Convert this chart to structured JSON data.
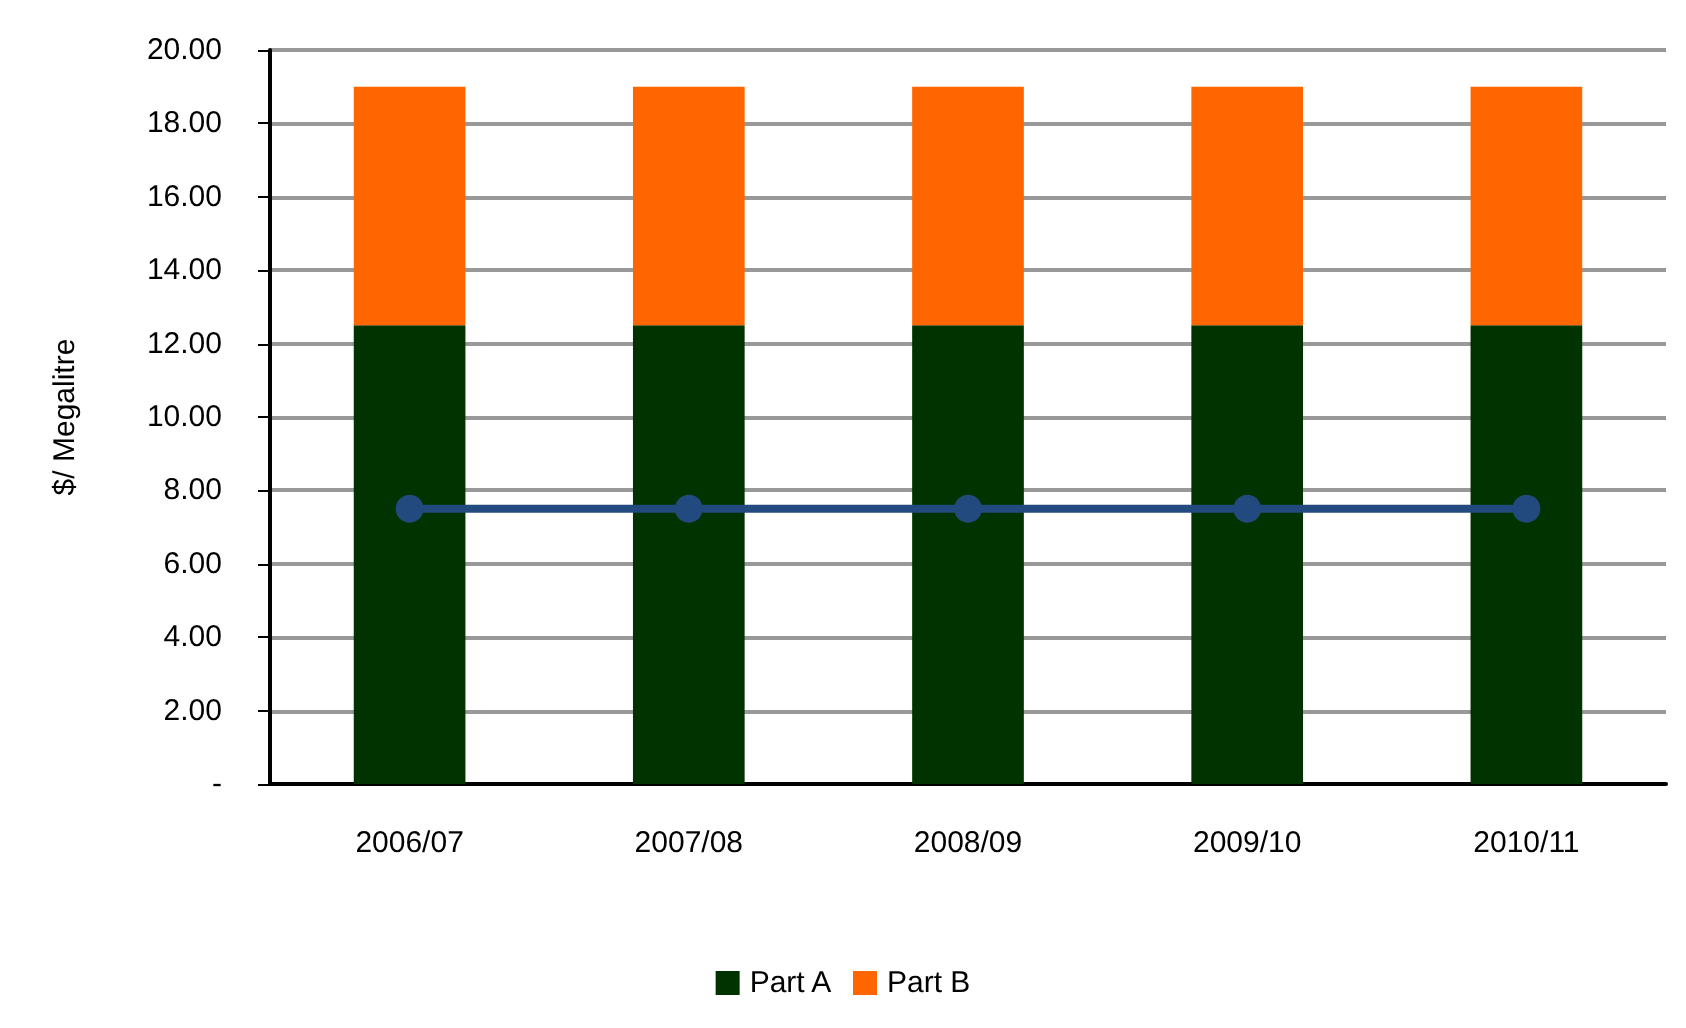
{
  "chart_data": {
    "type": "bar",
    "ylabel": "$/ Megalitre",
    "categories": [
      "2006/07",
      "2007/08",
      "2008/09",
      "2009/10",
      "2010/11"
    ],
    "stacked": true,
    "grid": "y",
    "legend": "bottom",
    "ylim": [
      0,
      20
    ],
    "yticks": [
      {
        "value": 0,
        "label": "-"
      },
      {
        "value": 2,
        "label": "2.00"
      },
      {
        "value": 4,
        "label": "4.00"
      },
      {
        "value": 6,
        "label": "6.00"
      },
      {
        "value": 8,
        "label": "8.00"
      },
      {
        "value": 10,
        "label": "10.00"
      },
      {
        "value": 12,
        "label": "12.00"
      },
      {
        "value": 14,
        "label": "14.00"
      },
      {
        "value": 16,
        "label": "16.00"
      },
      {
        "value": 18,
        "label": "18.00"
      },
      {
        "value": 20,
        "label": "20.00"
      }
    ],
    "series": [
      {
        "name": "Part A",
        "color": "#003300",
        "values": [
          12.5,
          12.5,
          12.5,
          12.5,
          12.5
        ]
      },
      {
        "name": "Part B",
        "color": "#ff6600",
        "values": [
          6.5,
          6.5,
          6.5,
          6.5,
          6.5
        ]
      },
      {
        "type": "line",
        "color": "#234a7e",
        "marker": "circle",
        "line_style": "solid",
        "values": [
          7.5,
          7.5,
          7.5,
          7.5,
          7.5
        ]
      }
    ]
  }
}
